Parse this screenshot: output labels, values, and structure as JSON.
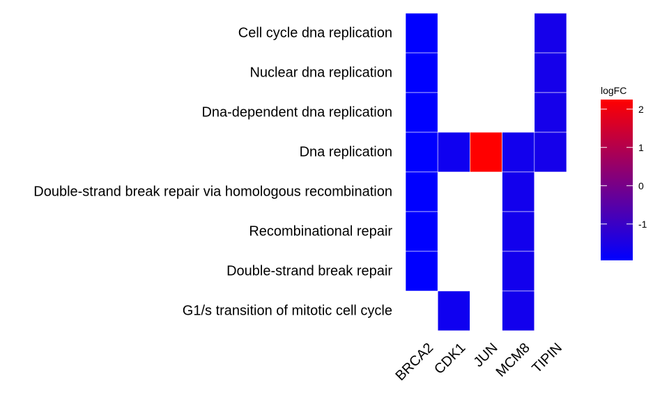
{
  "chart_data": {
    "type": "heatmap",
    "rows": [
      "Cell cycle dna replication",
      "Nuclear dna replication",
      "Dna-dependent dna replication",
      "Dna replication",
      "Double-strand break repair via homologous recombination",
      "Recombinational repair",
      "Double-strand break repair",
      "G1/s transition of mitotic cell cycle"
    ],
    "columns": [
      "BRCA2",
      "CDK1",
      "JUN",
      "MCM8",
      "TIPIN"
    ],
    "values": [
      [
        -1.95,
        null,
        null,
        null,
        -1.6
      ],
      [
        -1.95,
        null,
        null,
        null,
        -1.6
      ],
      [
        -1.95,
        null,
        null,
        null,
        -1.6
      ],
      [
        -1.95,
        -1.7,
        2.25,
        -1.65,
        -1.6
      ],
      [
        -1.95,
        null,
        null,
        -1.65,
        null
      ],
      [
        -1.95,
        null,
        null,
        -1.65,
        null
      ],
      [
        -1.95,
        null,
        null,
        -1.65,
        null
      ],
      [
        null,
        -1.7,
        null,
        -1.65,
        null
      ]
    ],
    "legend": {
      "title": "logFC",
      "ticks": [
        2,
        1,
        0,
        -1
      ],
      "tick_labels": [
        "2",
        "1",
        "0",
        "-1"
      ],
      "min": -1.95,
      "max": 2.25,
      "color_low": "#0000ff",
      "color_high": "#ff0000",
      "placement": "right"
    },
    "grid": false
  }
}
